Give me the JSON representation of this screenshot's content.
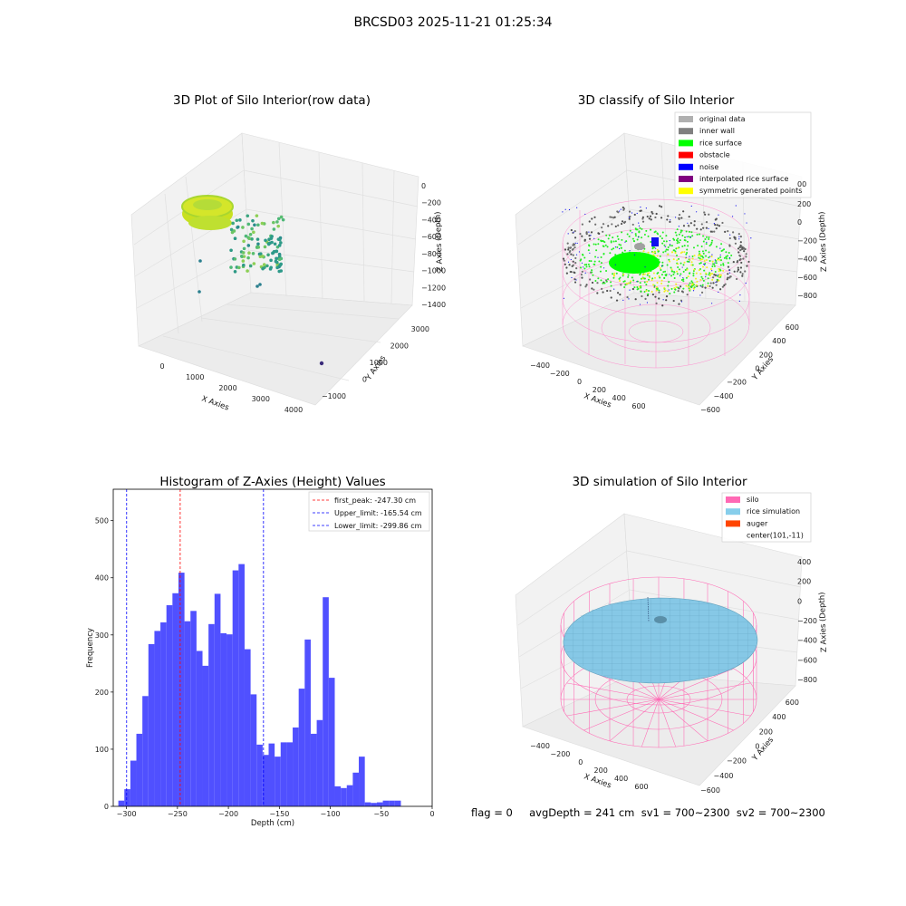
{
  "suptitle": "BRCSD03 2025-11-21 01:25:34",
  "footer": "flag = 0     avgDepth = 241 cm  sv1 = 700~2300  sv2 = 700~2300",
  "plot_raw": {
    "title": "3D Plot of Silo Interior(row data)",
    "xlabel": "X Axies",
    "ylabel": "Y Axies",
    "zlabel": "Z Axies (Depth)",
    "xticks": [
      "0",
      "1000",
      "2000",
      "3000",
      "4000"
    ],
    "yticks": [
      "−1000",
      "0",
      "1000",
      "2000",
      "3000"
    ],
    "zticks": [
      "0",
      "−200",
      "−400",
      "−600",
      "−800",
      "−1000",
      "−1200",
      "−1400"
    ]
  },
  "plot_classify": {
    "title": "3D classify of Silo Interior",
    "xlabel": "X Axies",
    "ylabel": "Y Axies",
    "zlabel": "Z Axies (Depth)",
    "xticks": [
      "−400",
      "−200",
      "0",
      "200",
      "400",
      "600"
    ],
    "yticks": [
      "−600",
      "−400",
      "−200",
      "0",
      "200",
      "400",
      "600"
    ],
    "zticks": [
      "200",
      "0",
      "−200",
      "−400",
      "−600",
      "−800"
    ],
    "z_top_partial": "00",
    "legend": [
      {
        "label": "original data",
        "color": "#b0b0b0"
      },
      {
        "label": "inner wall",
        "color": "#808080"
      },
      {
        "label": "rice surface",
        "color": "#00ff00"
      },
      {
        "label": "obstacle",
        "color": "#ff0000"
      },
      {
        "label": "noise",
        "color": "#0000ff"
      },
      {
        "label": "interpolated rice surface",
        "color": "#800080"
      },
      {
        "label": "symmetric generated points",
        "color": "#ffff00"
      }
    ]
  },
  "plot_sim": {
    "title": "3D simulation of Silo Interior",
    "xlabel": "X Axies",
    "ylabel": "Y Axies",
    "zlabel": "Z Axies (Depth)",
    "xticks": [
      "−400",
      "−200",
      "0",
      "200",
      "400",
      "600"
    ],
    "yticks": [
      "−600",
      "−400",
      "−200",
      "0",
      "200",
      "400",
      "600"
    ],
    "zticks": [
      "400",
      "200",
      "0",
      "−200",
      "−400",
      "−600",
      "−800"
    ],
    "legend": [
      {
        "label": "silo",
        "color": "#ff69b4"
      },
      {
        "label": "rice simulation",
        "color": "#87ceeb"
      },
      {
        "label": "auger",
        "color": "#ff4500"
      },
      {
        "label": "center(101,-11)",
        "color": ""
      }
    ]
  },
  "chart_data": {
    "type": "bar",
    "title": "Histogram of Z-Axies (Height) Values",
    "xlabel": "Depth (cm)",
    "ylabel": "Frequency",
    "xlim": [
      -313,
      0
    ],
    "ylim": [
      0,
      555
    ],
    "bin_start": -308,
    "bin_width": 5.9,
    "values": [
      10,
      30,
      80,
      127,
      193,
      284,
      307,
      322,
      352,
      373,
      409,
      324,
      342,
      272,
      246,
      319,
      372,
      303,
      301,
      413,
      424,
      275,
      196,
      108,
      90,
      110,
      87,
      112,
      112,
      138,
      206,
      292,
      127,
      151,
      366,
      225,
      35,
      32,
      37,
      59,
      87,
      7,
      6,
      7,
      10,
      10,
      10
    ],
    "xticks": [
      -300,
      -250,
      -200,
      -150,
      -100,
      -50,
      0
    ],
    "xtick_labels": [
      "−300",
      "−250",
      "−200",
      "−150",
      "−100",
      "−50",
      "0"
    ],
    "yticks": [
      0,
      100,
      200,
      300,
      400,
      500
    ],
    "bar_color": "#5050ff",
    "vlines": [
      {
        "x": -247.3,
        "color": "#ff0000",
        "label": "first_peak: -247.30 cm"
      },
      {
        "x": -165.54,
        "color": "#0000ff",
        "label": "Upper_limit: -165.54 cm"
      },
      {
        "x": -299.86,
        "color": "#0000ff",
        "label": "Lower_limit: -299.86 cm"
      }
    ]
  }
}
